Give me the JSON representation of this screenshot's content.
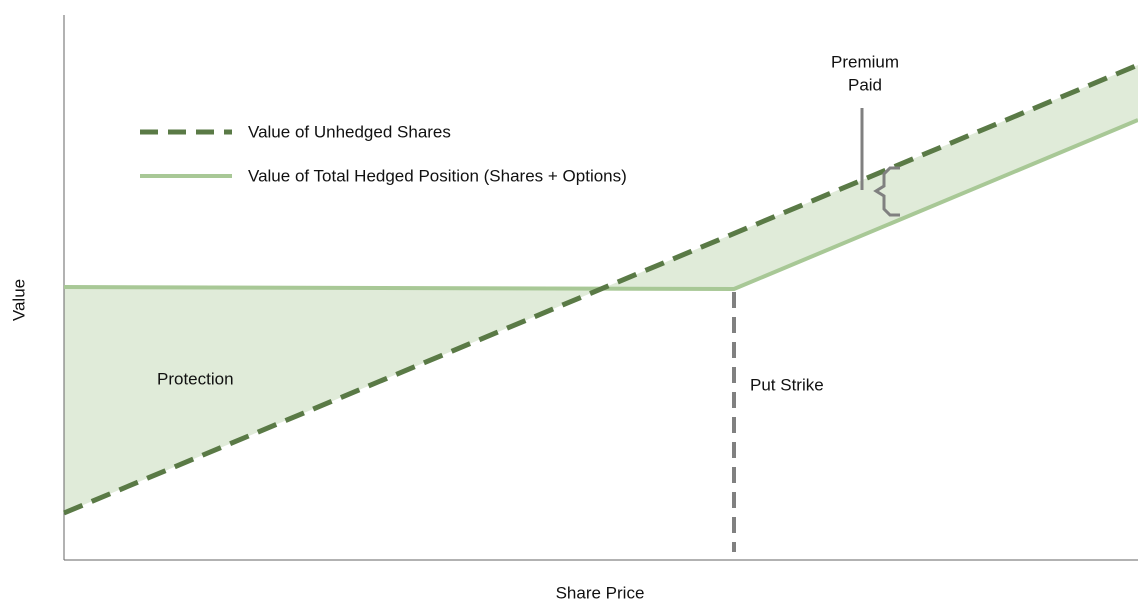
{
  "axes": {
    "y_label": "Value",
    "x_label": "Share Price"
  },
  "legend": {
    "items": [
      {
        "label": "Value of Unhedged Shares"
      },
      {
        "label": "Value of Total Hedged Position (Shares + Options)"
      }
    ]
  },
  "annotations": {
    "protection": "Protection",
    "put_strike": "Put Strike",
    "premium_paid": [
      "Premium",
      "Paid"
    ]
  }
}
